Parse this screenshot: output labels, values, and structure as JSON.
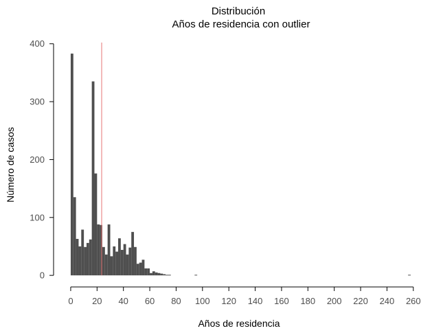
{
  "chart_data": {
    "type": "bar",
    "title": "Distribución",
    "subtitle": "Años de residencia con outlier",
    "xlabel": "Años de residencia",
    "ylabel": "Número de casos",
    "xlim": [
      -13,
      270
    ],
    "ylim": [
      -20,
      408
    ],
    "x_ticks": [
      0,
      20,
      40,
      60,
      80,
      100,
      120,
      140,
      160,
      180,
      200,
      220,
      240,
      260
    ],
    "y_ticks": [
      0,
      100,
      200,
      300,
      400
    ],
    "bin_width": 2,
    "bins": [
      {
        "x0": 0,
        "count": 383
      },
      {
        "x0": 2,
        "count": 135
      },
      {
        "x0": 4,
        "count": 63
      },
      {
        "x0": 6,
        "count": 50
      },
      {
        "x0": 8,
        "count": 79
      },
      {
        "x0": 10,
        "count": 49
      },
      {
        "x0": 12,
        "count": 56
      },
      {
        "x0": 14,
        "count": 62
      },
      {
        "x0": 16,
        "count": 335
      },
      {
        "x0": 18,
        "count": 176
      },
      {
        "x0": 20,
        "count": 88
      },
      {
        "x0": 22,
        "count": 87
      },
      {
        "x0": 24,
        "count": 49
      },
      {
        "x0": 26,
        "count": 36
      },
      {
        "x0": 28,
        "count": 88
      },
      {
        "x0": 30,
        "count": 33
      },
      {
        "x0": 32,
        "count": 50
      },
      {
        "x0": 34,
        "count": 41
      },
      {
        "x0": 36,
        "count": 64
      },
      {
        "x0": 38,
        "count": 44
      },
      {
        "x0": 40,
        "count": 54
      },
      {
        "x0": 42,
        "count": 36
      },
      {
        "x0": 44,
        "count": 48
      },
      {
        "x0": 46,
        "count": 75
      },
      {
        "x0": 48,
        "count": 49
      },
      {
        "x0": 50,
        "count": 20
      },
      {
        "x0": 52,
        "count": 22
      },
      {
        "x0": 54,
        "count": 27
      },
      {
        "x0": 56,
        "count": 12
      },
      {
        "x0": 58,
        "count": 12
      },
      {
        "x0": 60,
        "count": 4
      },
      {
        "x0": 62,
        "count": 7
      },
      {
        "x0": 64,
        "count": 5
      },
      {
        "x0": 66,
        "count": 4
      },
      {
        "x0": 68,
        "count": 3
      },
      {
        "x0": 70,
        "count": 2
      },
      {
        "x0": 72,
        "count": 1
      },
      {
        "x0": 74,
        "count": 1
      },
      {
        "x0": 94,
        "count": 1
      },
      {
        "x0": 256,
        "count": 1
      }
    ],
    "vline": {
      "x": 23.5,
      "color": "#e57373"
    },
    "bar_color": "#4f4f4f",
    "axis_color": "#000000",
    "tick_label_color": "#4d4d4d",
    "grid": false,
    "legend": "none"
  }
}
